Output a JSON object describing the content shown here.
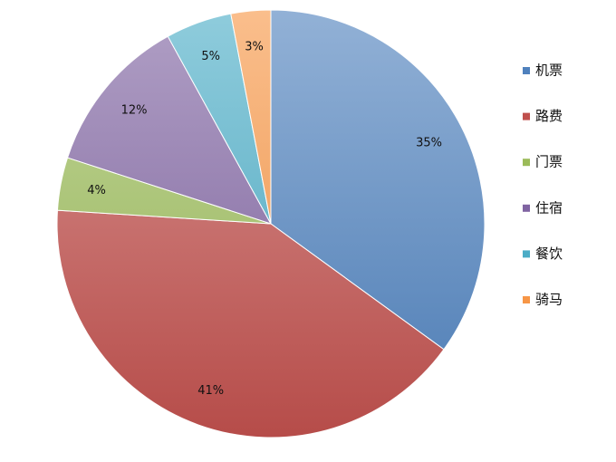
{
  "chart_data": {
    "type": "pie",
    "categories": [
      "机票",
      "路费",
      "门票",
      "住宿",
      "餐饮",
      "骑马"
    ],
    "values": [
      35,
      41,
      4,
      12,
      5,
      3
    ],
    "data_labels": [
      "35%",
      "41%",
      "4%",
      "12%",
      "5%",
      "3%"
    ],
    "colors": [
      "#4f81bd",
      "#c0504d",
      "#9bbb59",
      "#8064a2",
      "#4bacc6",
      "#f79646"
    ],
    "title": "",
    "legend": {
      "placement": "right",
      "entries": [
        "机票",
        "路费",
        "门票",
        "住宿",
        "餐饮",
        "骑马"
      ]
    }
  }
}
